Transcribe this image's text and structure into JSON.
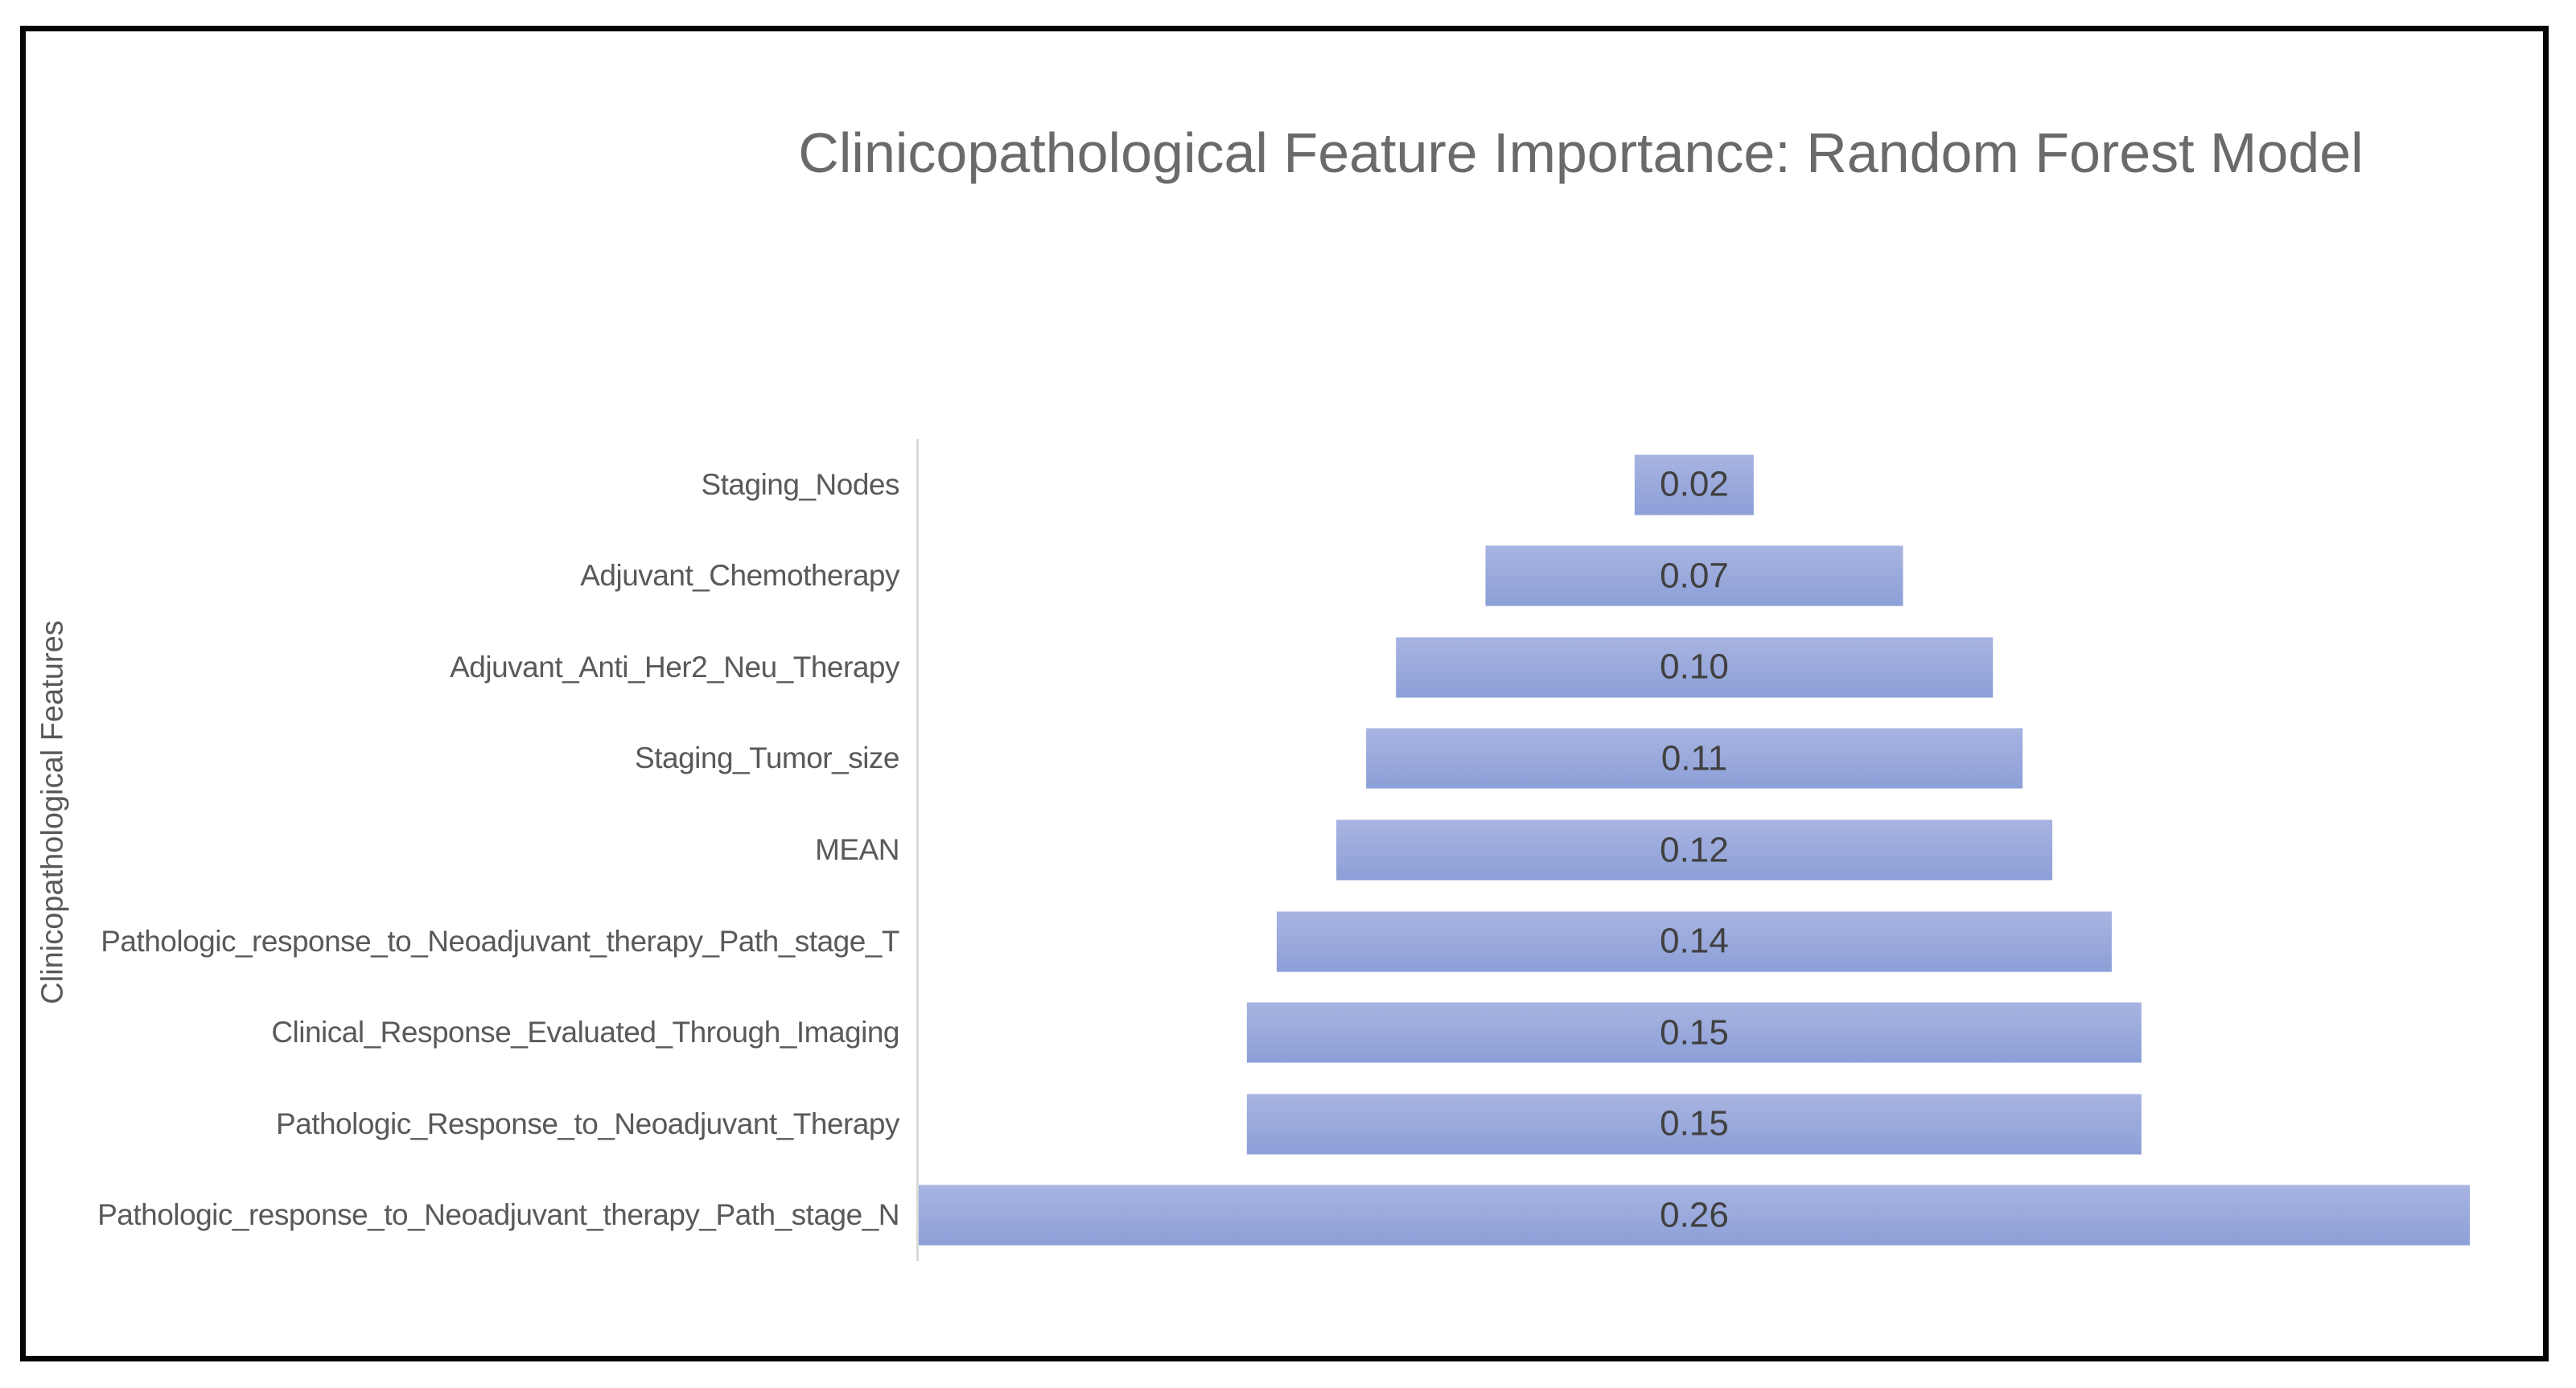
{
  "chart_data": {
    "type": "bar",
    "subtype": "horizontal-centered-funnel",
    "title": "Clinicopathological Feature Importance: Random Forest Model",
    "xlabel": "",
    "ylabel": "Clinicopathological Features",
    "categories": [
      "Staging_Nodes",
      "Adjuvant_Chemotherapy",
      "Adjuvant_Anti_Her2_Neu_Therapy",
      "Staging_Tumor_size",
      "MEAN",
      "Pathologic_response_to_Neoadjuvant_therapy_Path_stage_T",
      "Clinical_Response_Evaluated_Through_Imaging",
      "Pathologic_Response_to_Neoadjuvant_Therapy",
      "Pathologic_response_to_Neoadjuvant_therapy_Path_stage_N"
    ],
    "values": [
      0.02,
      0.07,
      0.1,
      0.11,
      0.12,
      0.14,
      0.15,
      0.15,
      0.26
    ],
    "value_labels": [
      "0.02",
      "0.07",
      "0.10",
      "0.11",
      "0.12",
      "0.14",
      "0.15",
      "0.15",
      "0.26"
    ],
    "xlim": [
      0,
      0.26
    ],
    "layout": {
      "legend": "none",
      "grid": false,
      "data_labels_position": "center-inside-bar",
      "bar_alignment": "centered",
      "y_axis_line": true,
      "x_axis_ticks": false
    },
    "colors": {
      "bar_fill": "#94a6db",
      "bar_fill_gradient_top": "#a8b4e1",
      "bar_fill_gradient_bottom": "#8c9fd7",
      "value_label_text": "#404040",
      "category_label_text": "#595959",
      "title_text": "#6a6a6a",
      "axis_line": "#d9d9d9",
      "outer_frame": "#000000"
    }
  }
}
